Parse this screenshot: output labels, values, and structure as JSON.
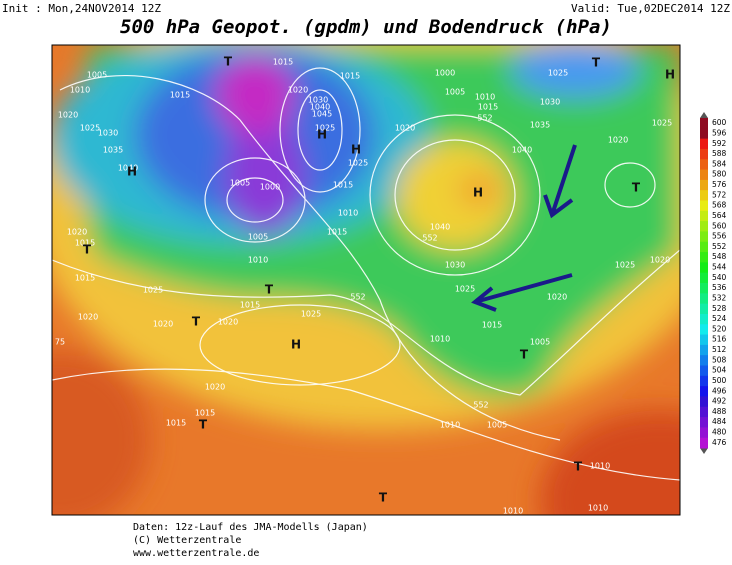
{
  "header": {
    "init": "Init : Mon,24NOV2014 12Z",
    "valid": "Valid: Tue,02DEC2014 12Z",
    "title": "500 hPa Geopot. (gpdm) und Bodendruck (hPa)"
  },
  "scale": {
    "labels": [
      "600",
      "596",
      "592",
      "588",
      "584",
      "580",
      "576",
      "572",
      "568",
      "564",
      "560",
      "556",
      "552",
      "548",
      "544",
      "540",
      "536",
      "532",
      "528",
      "524",
      "520",
      "516",
      "512",
      "508",
      "504",
      "500",
      "496",
      "492",
      "488",
      "484",
      "480",
      "476"
    ]
  },
  "map": {
    "isobar_labels": [
      "1005",
      "1010",
      "1020",
      "1025",
      "1030",
      "1035",
      "1040",
      "1015",
      "1015",
      "1020",
      "1030",
      "1040",
      "1045",
      "1025",
      "1015",
      "1000",
      "1005",
      "1010",
      "1015",
      "1025",
      "1030",
      "1035",
      "1040",
      "1020",
      "1025",
      "1000",
      "1005",
      "1005",
      "1010",
      "1010",
      "1015",
      "1015",
      "1020",
      "1025",
      "1020",
      "1015",
      "1015",
      "1025",
      "1020",
      "1020",
      "1020",
      "1015",
      "1025",
      "1040",
      "1030",
      "1025",
      "1020",
      "1015",
      "1010",
      "1005",
      "1025",
      "1020",
      "1020",
      "1015",
      "1015",
      "1010",
      "1005",
      "1010",
      "1010",
      "1010",
      "75"
    ],
    "height_labels": [
      "552",
      "552",
      "552",
      "552"
    ],
    "centers": [
      "H",
      "H",
      "H",
      "H",
      "H",
      "H",
      "T",
      "T",
      "T",
      "T",
      "T",
      "T",
      "T",
      "T",
      "T",
      "T"
    ]
  },
  "footer": {
    "lines": [
      "Daten: 12z-Lauf des JMA-Modells (Japan)",
      "(C) Wetterzentrale",
      "www.wetterzentrale.de"
    ]
  }
}
